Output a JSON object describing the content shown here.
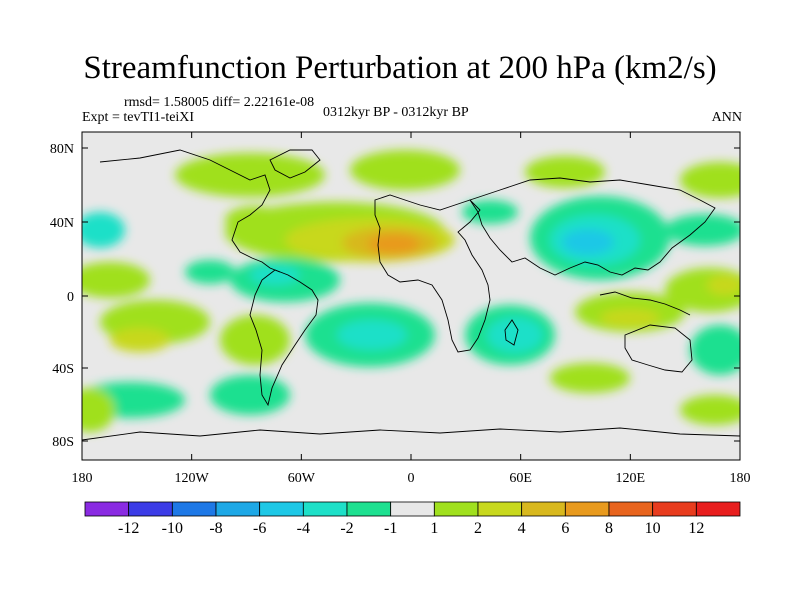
{
  "figure": {
    "title": "Streamfunction Perturbation at 200 hPa (km2/s)",
    "stats": "rmsd= 1.58005 diff= 2.22161e-08",
    "experiment": "Expt = tevTI1-teiXI",
    "period": "0312kyr BP - 0312kyr BP",
    "season": "ANN"
  },
  "axes": {
    "y_ticks": [
      "80N",
      "40N",
      "0",
      "40S",
      "80S"
    ],
    "x_ticks": [
      "180",
      "120W",
      "60W",
      "0",
      "60E",
      "120E",
      "180"
    ]
  },
  "colorbar": {
    "colors": [
      "#8a2be2",
      "#3c3ce6",
      "#1e78e6",
      "#1ea8e6",
      "#1ec8e6",
      "#1ee0c8",
      "#1ee090",
      "#e8e8e8",
      "#a0e01e",
      "#c8d81e",
      "#d8b81e",
      "#e89a1e",
      "#e8641e",
      "#e83c1e",
      "#e81e1e"
    ],
    "labels": [
      "-12",
      "-10",
      "-8",
      "-6",
      "-4",
      "-2",
      "-1",
      "1",
      "2",
      "4",
      "6",
      "8",
      "10",
      "12"
    ]
  },
  "chart_data": {
    "type": "contour-map",
    "variable": "200 hPa streamfunction perturbation",
    "units": "km2/s",
    "xlim": [
      -180,
      180
    ],
    "ylim": [
      -90,
      90
    ],
    "levels": [
      -12,
      -10,
      -8,
      -6,
      -4,
      -2,
      -1,
      1,
      2,
      4,
      6,
      8,
      10,
      12
    ],
    "features": [
      {
        "name": "north-africa-positive-max",
        "lon": -5,
        "lat": 27,
        "value": 7
      },
      {
        "name": "atlantic-positive-band",
        "lon": -40,
        "lat": 32,
        "value": 3
      },
      {
        "name": "asia-negative-min",
        "lon": 95,
        "lat": 28,
        "value": -4
      },
      {
        "name": "south-atlantic-negative-min",
        "lon": -20,
        "lat": -22,
        "value": -3
      },
      {
        "name": "southwest-indian-negative-min",
        "lon": 45,
        "lat": -25,
        "value": -3
      },
      {
        "name": "caribbean-negative",
        "lon": -75,
        "lat": 10,
        "value": -2
      },
      {
        "name": "western-pacific-positive",
        "lon": 140,
        "lat": -12,
        "value": 3
      },
      {
        "name": "east-asia-positive",
        "lon": 150,
        "lat": 10,
        "value": 2
      },
      {
        "name": "east-pacific-positive",
        "lon": -160,
        "lat": -25,
        "value": 3
      },
      {
        "name": "arctic-atlantic-positive",
        "lon": -20,
        "lat": 70,
        "value": 2
      }
    ]
  }
}
